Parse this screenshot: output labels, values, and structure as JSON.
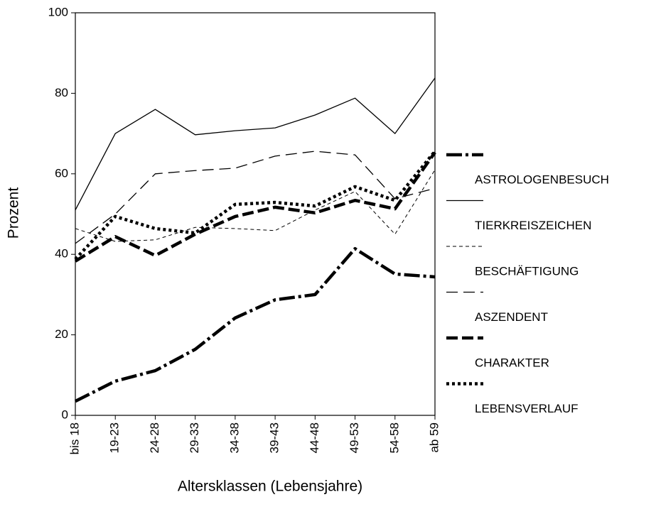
{
  "chart_data": {
    "type": "line",
    "x_label": "Altersklassen (Lebensjahre)",
    "y_label": "Prozent",
    "categories": [
      "bis 18",
      "19-23",
      "24-28",
      "29-33",
      "34-38",
      "39-43",
      "44-48",
      "49-53",
      "54-58",
      "ab 59"
    ],
    "ylim": [
      0,
      100
    ],
    "yticks": [
      0,
      20,
      40,
      60,
      80,
      100
    ],
    "legend": "right",
    "series": [
      {
        "name": "ASTROLOGENBESUCH",
        "color": "#000000",
        "dash": "22 5 4 5",
        "width": 4.5,
        "values": [
          3.5,
          8.5,
          11.1,
          16.4,
          24.2,
          28.7,
          30,
          41.4,
          35.1,
          34.4
        ]
      },
      {
        "name": "TIERKREISZEICHEN",
        "color": "#000000",
        "dash": "none",
        "width": 1.3,
        "values": [
          51,
          70,
          76,
          69.7,
          70.7,
          71.4,
          74.6,
          78.8,
          70,
          83.8
        ]
      },
      {
        "name": "BESCHÄFTIGUNG",
        "color": "#000000",
        "dash": "5 4",
        "width": 1,
        "values": [
          46.4,
          43.2,
          43.6,
          46.7,
          46.4,
          45.9,
          51,
          55.6,
          45,
          61
        ]
      },
      {
        "name": "ASZENDENT",
        "color": "#000000",
        "dash": "16 8",
        "width": 1.3,
        "values": [
          42.7,
          50,
          60,
          60.8,
          61.4,
          64.4,
          65.6,
          64.7,
          53.8,
          56.4
        ]
      },
      {
        "name": "CHARAKTER",
        "color": "#000000",
        "dash": "16 6",
        "width": 4.5,
        "values": [
          38.3,
          44.4,
          39.7,
          45,
          49.4,
          51.7,
          50.3,
          53.4,
          51.3,
          65.3
        ]
      },
      {
        "name": "LEBENSVERLAUF",
        "color": "#000000",
        "dash": "4 4",
        "width": 4.5,
        "values": [
          38.8,
          49.4,
          46.4,
          45.3,
          52.4,
          52.9,
          52,
          56.8,
          53.4,
          65.6
        ]
      }
    ]
  }
}
